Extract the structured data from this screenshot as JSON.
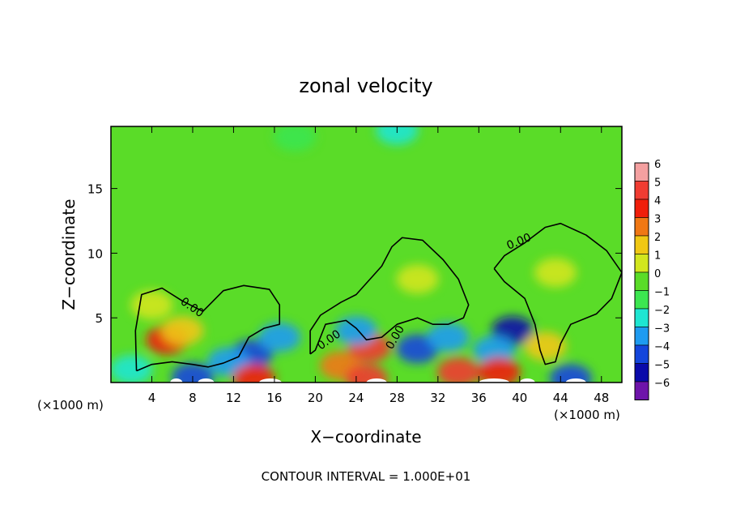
{
  "chart_data": {
    "type": "heatmap",
    "title": "zonal velocity",
    "xlabel": "X−coordinate",
    "ylabel": "Z−coordinate",
    "x_unit_left": "(×1000 m)",
    "x_unit_right": "(×1000 m)",
    "footer": "CONTOUR INTERVAL = 1.000E+01",
    "xlim": [
      0,
      50
    ],
    "ylim": [
      0,
      19.8
    ],
    "x_ticks": [
      {
        "value": 4,
        "label": "4"
      },
      {
        "value": 8,
        "label": "8"
      },
      {
        "value": 12,
        "label": "12"
      },
      {
        "value": 16,
        "label": "16"
      },
      {
        "value": 20,
        "label": "20"
      },
      {
        "value": 24,
        "label": "24"
      },
      {
        "value": 28,
        "label": "28"
      },
      {
        "value": 32,
        "label": "32"
      },
      {
        "value": 36,
        "label": "36"
      },
      {
        "value": 40,
        "label": "40"
      },
      {
        "value": 44,
        "label": "44"
      },
      {
        "value": 48,
        "label": "48"
      }
    ],
    "y_ticks": [
      {
        "value": 5,
        "label": "5"
      },
      {
        "value": 10,
        "label": "10"
      },
      {
        "value": 15,
        "label": "15"
      }
    ],
    "colorbar": {
      "min": -6,
      "max": 6,
      "levels": [
        {
          "label": "6",
          "color": "#f4a0a0"
        },
        {
          "label": "5",
          "color": "#f03c32"
        },
        {
          "label": "4",
          "color": "#f01e0a"
        },
        {
          "label": "3",
          "color": "#f07814"
        },
        {
          "label": "2",
          "color": "#f0c814"
        },
        {
          "label": "1",
          "color": "#d2e61e"
        },
        {
          "label": "0",
          "color": "#5adc28"
        },
        {
          "label": "−1",
          "color": "#3ce650"
        },
        {
          "label": "−2",
          "color": "#1ee6d2"
        },
        {
          "label": "−3",
          "color": "#1e9bf0"
        },
        {
          "label": "−4",
          "color": "#1446dc"
        },
        {
          "label": "−5",
          "color": "#0a0aaa"
        },
        {
          "label": "−6",
          "color": "#6e14aa"
        }
      ]
    },
    "contour_labels": [
      "0.00",
      "0.00",
      "0.00",
      "0.00"
    ],
    "background_value": 0,
    "features": [
      {
        "x": 5.5,
        "z": 3.3,
        "value": 4.5
      },
      {
        "x": 7.0,
        "z": 4.0,
        "value": 1.8
      },
      {
        "x": 4.0,
        "z": 6.0,
        "value": 1.0
      },
      {
        "x": 13.8,
        "z": 2.2,
        "value": -4.0
      },
      {
        "x": 11.5,
        "z": 1.6,
        "value": -3.0
      },
      {
        "x": 16.5,
        "z": 3.5,
        "value": -2.8
      },
      {
        "x": 22.5,
        "z": 1.3,
        "value": 3.0
      },
      {
        "x": 25.3,
        "z": 2.7,
        "value": 5.0
      },
      {
        "x": 24.0,
        "z": 4.0,
        "value": -2.6
      },
      {
        "x": 30.0,
        "z": 2.6,
        "value": -3.5
      },
      {
        "x": 33.0,
        "z": 3.5,
        "value": -2.5
      },
      {
        "x": 30.0,
        "z": 8.0,
        "value": 1.0
      },
      {
        "x": 39.3,
        "z": 4.0,
        "value": -4.8
      },
      {
        "x": 37.5,
        "z": 2.5,
        "value": -3.0
      },
      {
        "x": 42.5,
        "z": 2.8,
        "value": 1.8
      },
      {
        "x": 43.5,
        "z": 8.5,
        "value": 1.2
      },
      {
        "x": 28.0,
        "z": 19.5,
        "value": -2.2
      },
      {
        "x": 18.0,
        "z": 19.0,
        "value": -1.2
      },
      {
        "x": 2.0,
        "z": 1.0,
        "value": -2.0
      },
      {
        "x": 8.0,
        "z": 0.4,
        "value": -4.0
      },
      {
        "x": 14.0,
        "z": 0.3,
        "value": 4.0
      },
      {
        "x": 25.0,
        "z": 0.3,
        "value": 5.0
      },
      {
        "x": 34.0,
        "z": 0.8,
        "value": 5.0
      },
      {
        "x": 38.0,
        "z": 0.8,
        "value": 4.0
      },
      {
        "x": 45.0,
        "z": 0.3,
        "value": -4.0
      }
    ],
    "contours": [
      [
        [
          2.5,
          0.9
        ],
        [
          2.4,
          4.0
        ],
        [
          3.0,
          6.8
        ],
        [
          5.0,
          7.3
        ],
        [
          7.0,
          6.3
        ],
        [
          9.0,
          5.5
        ],
        [
          10.0,
          6.3
        ],
        [
          11.0,
          7.1
        ],
        [
          13.0,
          7.5
        ],
        [
          15.5,
          7.2
        ],
        [
          16.5,
          6.0
        ],
        [
          16.5,
          4.5
        ],
        [
          15.0,
          4.2
        ],
        [
          13.5,
          3.5
        ],
        [
          12.5,
          2.0
        ],
        [
          11.0,
          1.5
        ],
        [
          9.5,
          1.2
        ],
        [
          8.0,
          1.4
        ],
        [
          6.0,
          1.6
        ],
        [
          4.0,
          1.4
        ],
        [
          2.5,
          0.9
        ]
      ],
      [
        [
          19.5,
          2.2
        ],
        [
          19.5,
          4.0
        ],
        [
          20.5,
          5.2
        ],
        [
          22.5,
          6.2
        ],
        [
          24.0,
          6.8
        ],
        [
          26.5,
          9.0
        ],
        [
          27.5,
          10.5
        ],
        [
          28.5,
          11.2
        ],
        [
          30.5,
          11.0
        ],
        [
          32.5,
          9.5
        ],
        [
          34.0,
          8.0
        ],
        [
          35.0,
          6.0
        ],
        [
          34.5,
          5.0
        ],
        [
          33.0,
          4.5
        ],
        [
          31.5,
          4.5
        ],
        [
          30.0,
          5.0
        ],
        [
          28.0,
          4.5
        ],
        [
          26.5,
          3.5
        ],
        [
          25.0,
          3.3
        ],
        [
          24.0,
          4.2
        ],
        [
          23.0,
          4.8
        ],
        [
          21.0,
          4.5
        ],
        [
          20.5,
          3.5
        ],
        [
          20.0,
          2.5
        ],
        [
          19.5,
          2.2
        ]
      ],
      [
        [
          37.5,
          8.8
        ],
        [
          38.5,
          9.8
        ],
        [
          40.5,
          10.8
        ],
        [
          42.5,
          12.0
        ],
        [
          44.0,
          12.3
        ],
        [
          46.5,
          11.4
        ],
        [
          48.5,
          10.2
        ],
        [
          50.0,
          8.5
        ],
        [
          49.0,
          6.5
        ],
        [
          47.5,
          5.3
        ],
        [
          45.0,
          4.5
        ],
        [
          44.0,
          3.0
        ],
        [
          43.5,
          1.6
        ],
        [
          42.5,
          1.4
        ],
        [
          42.0,
          2.5
        ],
        [
          41.5,
          4.5
        ],
        [
          40.5,
          6.5
        ],
        [
          38.5,
          7.8
        ],
        [
          37.5,
          8.8
        ]
      ]
    ],
    "white_gaps": [
      {
        "x": 5.8,
        "w": 1.2
      },
      {
        "x": 8.5,
        "w": 1.6
      },
      {
        "x": 14.5,
        "w": 2.2
      },
      {
        "x": 25.0,
        "w": 2.0
      },
      {
        "x": 36.0,
        "w": 3.0
      },
      {
        "x": 40.0,
        "w": 1.5
      },
      {
        "x": 44.5,
        "w": 2.0
      }
    ]
  }
}
